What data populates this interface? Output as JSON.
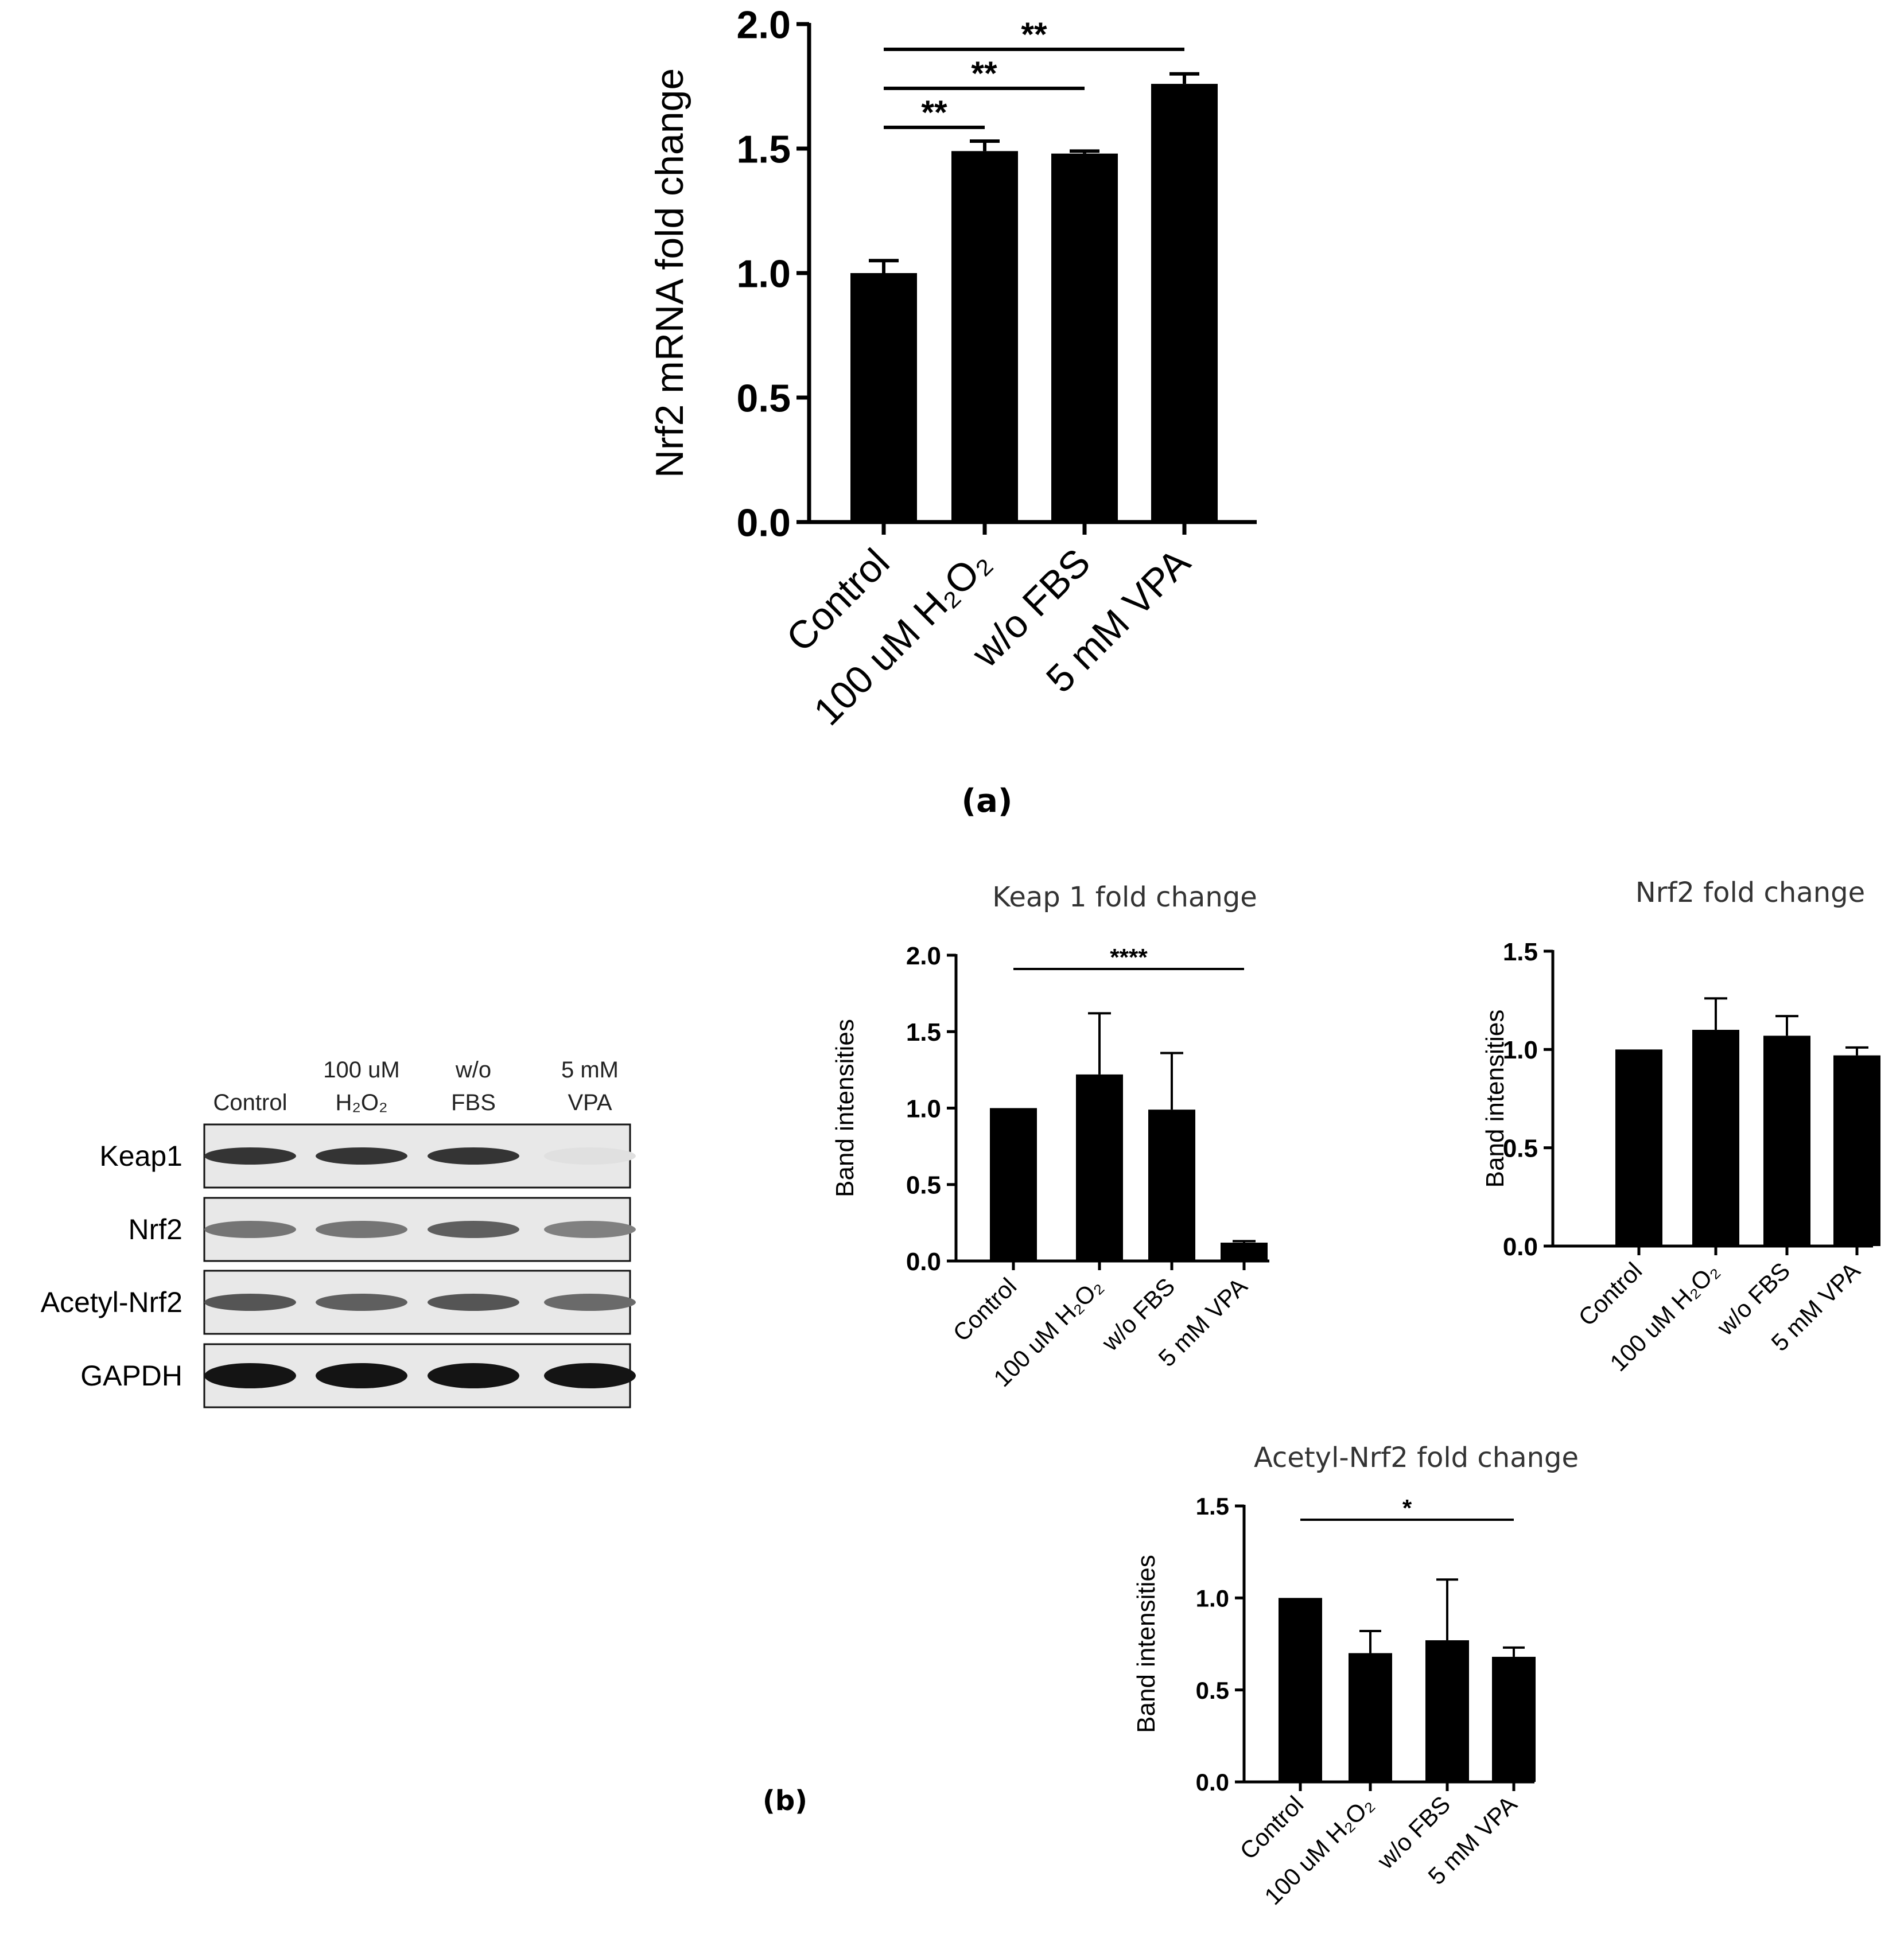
{
  "panel_labels": {
    "a": "(a)",
    "b": "(b)"
  },
  "western_blot": {
    "lanes": [
      {
        "line1": "",
        "line2": "Control"
      },
      {
        "line1": "100 uM",
        "line2": "H₂O₂"
      },
      {
        "line1": "w/o",
        "line2": "FBS"
      },
      {
        "line1": "5 mM",
        "line2": "VPA"
      }
    ],
    "rows": [
      {
        "label": "Keap1",
        "intensities": [
          0.85,
          0.85,
          0.85,
          0.05
        ]
      },
      {
        "label": "Nrf2",
        "intensities": [
          0.55,
          0.55,
          0.65,
          0.5
        ]
      },
      {
        "label": "Acetyl-Nrf2",
        "intensities": [
          0.7,
          0.65,
          0.7,
          0.6
        ]
      },
      {
        "label": "GAPDH",
        "intensities": [
          1.0,
          1.0,
          1.0,
          1.0
        ]
      }
    ]
  },
  "chart_data": [
    {
      "id": "a",
      "type": "bar",
      "title": "",
      "ylabel": "Nrf2 mRNA fold change",
      "xlabel": "",
      "categories": [
        "Control",
        "100 uM H₂O₂",
        "w/o FBS",
        "5 mM VPA"
      ],
      "values": [
        1.0,
        1.49,
        1.48,
        1.76
      ],
      "errors": [
        0.05,
        0.04,
        0.01,
        0.04
      ],
      "ylim": [
        0,
        2.0
      ],
      "yticks": [
        "0.0",
        "0.5",
        "1.0",
        "1.5",
        "2.0"
      ],
      "yticks_values": [
        0,
        0.5,
        1.0,
        1.5,
        2.0
      ],
      "significance": [
        {
          "from": 0,
          "to": 1,
          "label": "**"
        },
        {
          "from": 0,
          "to": 2,
          "label": "**"
        },
        {
          "from": 0,
          "to": 3,
          "label": "**"
        }
      ]
    },
    {
      "id": "keap1",
      "type": "bar",
      "title": "Keap 1  fold change",
      "ylabel": "Band intensities",
      "xlabel": "",
      "categories": [
        "Control",
        "100 uM H₂O₂",
        "w/o FBS",
        "5 mM VPA"
      ],
      "values": [
        1.0,
        1.22,
        0.99,
        0.12
      ],
      "errors": [
        0,
        0.4,
        0.37,
        0.01
      ],
      "ylim": [
        0,
        2.0
      ],
      "yticks": [
        "0.0",
        "0.5",
        "1.0",
        "1.5",
        "2.0"
      ],
      "yticks_values": [
        0,
        0.5,
        1.0,
        1.5,
        2.0
      ],
      "significance": [
        {
          "from": 0,
          "to": 3,
          "label": "****"
        }
      ]
    },
    {
      "id": "nrf2",
      "type": "bar",
      "title": "Nrf2 fold change",
      "ylabel": "Band intensities",
      "xlabel": "",
      "categories": [
        "Control",
        "100 uM H₂O₂",
        "w/o FBS",
        "5 mM VPA"
      ],
      "values": [
        1.0,
        1.1,
        1.07,
        0.97
      ],
      "errors": [
        0,
        0.16,
        0.1,
        0.04
      ],
      "ylim": [
        0,
        1.5
      ],
      "yticks": [
        "0.0",
        "0.5",
        "1.0",
        "1.5"
      ],
      "yticks_values": [
        0,
        0.5,
        1.0,
        1.5
      ],
      "significance": []
    },
    {
      "id": "acetyl",
      "type": "bar",
      "title": "Acetyl-Nrf2  fold change",
      "ylabel": "Band intensities",
      "xlabel": "",
      "categories": [
        "Control",
        "100 uM H₂O₂",
        "w/o FBS",
        "5 mM VPA"
      ],
      "values": [
        1.0,
        0.7,
        0.77,
        0.68
      ],
      "errors": [
        0,
        0.12,
        0.33,
        0.05
      ],
      "ylim": [
        0,
        1.5
      ],
      "yticks": [
        "0.0",
        "0.5",
        "1.0",
        "1.5"
      ],
      "yticks_values": [
        0,
        0.5,
        1.0,
        1.5
      ],
      "significance": [
        {
          "from": 0,
          "to": 3,
          "label": "*"
        }
      ]
    }
  ]
}
